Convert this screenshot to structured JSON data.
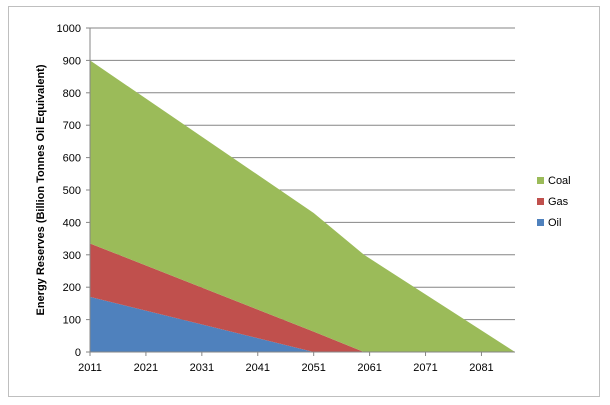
{
  "chart_data": {
    "type": "area",
    "stacked": true,
    "ylabel": "Energy Reserves (Billion Tonnes Oil Equivalent)",
    "xlabel": "",
    "title": "",
    "xlim": [
      2011,
      2087
    ],
    "ylim": [
      0,
      1000
    ],
    "y_ticks": [
      0,
      100,
      200,
      300,
      400,
      500,
      600,
      700,
      800,
      900,
      1000
    ],
    "x_ticks": [
      2011,
      2021,
      2031,
      2041,
      2051,
      2061,
      2071,
      2081
    ],
    "grid": "horizontal",
    "legend_position": "right",
    "series": [
      {
        "name": "Oil",
        "color": "#4f81bd",
        "points": [
          [
            2011,
            170
          ],
          [
            2051,
            0
          ],
          [
            2087,
            0
          ]
        ]
      },
      {
        "name": "Gas",
        "color": "#c0504d",
        "points": [
          [
            2011,
            165
          ],
          [
            2051,
            63
          ],
          [
            2060,
            0
          ],
          [
            2087,
            0
          ]
        ]
      },
      {
        "name": "Coal",
        "color": "#9bbb59",
        "points": [
          [
            2011,
            565
          ],
          [
            2051,
            366
          ],
          [
            2060,
            300
          ],
          [
            2087,
            0
          ]
        ]
      }
    ],
    "legend_order": [
      "Coal",
      "Gas",
      "Oil"
    ]
  }
}
